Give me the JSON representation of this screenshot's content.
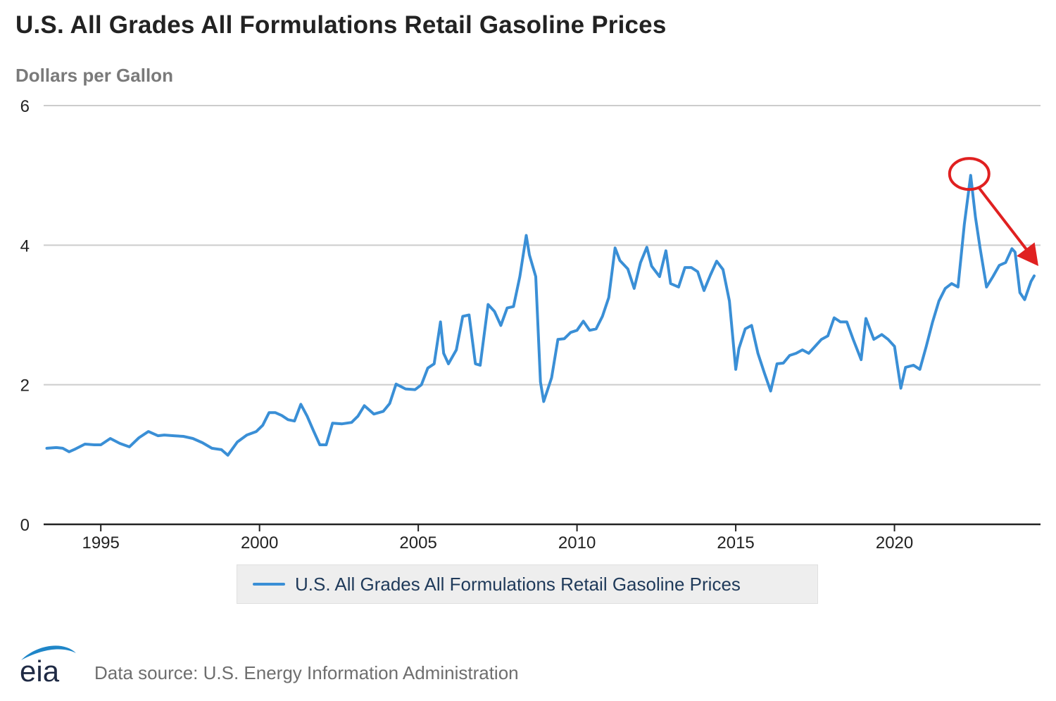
{
  "header": {
    "title": "U.S. All Grades All Formulations Retail Gasoline Prices",
    "units": "Dollars per Gallon"
  },
  "footer": {
    "logo_text": "eia",
    "source": "Data source: U.S. Energy Information Administration"
  },
  "colors": {
    "series": "#3a8fd6",
    "annotation": "#e02020",
    "grid": "#cccccc",
    "axis": "#222222"
  },
  "chart_data": {
    "type": "line",
    "title": "U.S. All Grades All Formulations Retail Gasoline Prices",
    "ylabel": "Dollars per Gallon",
    "xlabel": "",
    "xlim": [
      1993.2,
      2024.6
    ],
    "ylim": [
      0,
      6
    ],
    "x_ticks": [
      1995,
      2000,
      2005,
      2010,
      2015,
      2020
    ],
    "y_ticks": [
      0,
      2,
      4,
      6
    ],
    "grid": true,
    "legend": "bottom-center",
    "series": [
      {
        "name": "U.S. All Grades All Formulations Retail Gasoline Prices",
        "x": [
          1993.3,
          1993.6,
          1993.8,
          1994.0,
          1994.2,
          1994.5,
          1994.8,
          1995.0,
          1995.3,
          1995.6,
          1995.9,
          1996.2,
          1996.5,
          1996.8,
          1997.0,
          1997.3,
          1997.6,
          1997.9,
          1998.2,
          1998.5,
          1998.8,
          1999.0,
          1999.3,
          1999.6,
          1999.9,
          2000.1,
          2000.3,
          2000.5,
          2000.7,
          2000.9,
          2001.1,
          2001.3,
          2001.5,
          2001.7,
          2001.9,
          2002.1,
          2002.3,
          2002.6,
          2002.9,
          2003.1,
          2003.3,
          2003.6,
          2003.9,
          2004.1,
          2004.3,
          2004.6,
          2004.9,
          2005.1,
          2005.3,
          2005.5,
          2005.7,
          2005.8,
          2005.95,
          2006.2,
          2006.4,
          2006.6,
          2006.8,
          2006.95,
          2007.2,
          2007.4,
          2007.6,
          2007.8,
          2008.0,
          2008.2,
          2008.4,
          2008.5,
          2008.7,
          2008.85,
          2008.95,
          2009.2,
          2009.4,
          2009.6,
          2009.8,
          2010.0,
          2010.2,
          2010.4,
          2010.6,
          2010.8,
          2011.0,
          2011.2,
          2011.35,
          2011.6,
          2011.8,
          2012.0,
          2012.2,
          2012.35,
          2012.6,
          2012.8,
          2012.95,
          2013.2,
          2013.4,
          2013.6,
          2013.8,
          2014.0,
          2014.2,
          2014.4,
          2014.6,
          2014.8,
          2015.0,
          2015.1,
          2015.3,
          2015.5,
          2015.7,
          2015.9,
          2016.1,
          2016.3,
          2016.5,
          2016.7,
          2016.9,
          2017.1,
          2017.3,
          2017.5,
          2017.7,
          2017.9,
          2018.1,
          2018.3,
          2018.5,
          2018.7,
          2018.95,
          2019.1,
          2019.35,
          2019.6,
          2019.8,
          2020.0,
          2020.2,
          2020.35,
          2020.6,
          2020.8,
          2021.0,
          2021.2,
          2021.4,
          2021.6,
          2021.8,
          2022.0,
          2022.2,
          2022.4,
          2022.55,
          2022.7,
          2022.9,
          2023.1,
          2023.3,
          2023.5,
          2023.7,
          2023.8,
          2023.95,
          2024.1,
          2024.3,
          2024.4
        ],
        "values": [
          1.09,
          1.1,
          1.09,
          1.04,
          1.08,
          1.15,
          1.14,
          1.14,
          1.23,
          1.16,
          1.11,
          1.24,
          1.33,
          1.27,
          1.28,
          1.27,
          1.26,
          1.23,
          1.17,
          1.09,
          1.07,
          0.99,
          1.18,
          1.28,
          1.33,
          1.42,
          1.6,
          1.6,
          1.56,
          1.5,
          1.48,
          1.72,
          1.55,
          1.34,
          1.14,
          1.14,
          1.45,
          1.44,
          1.46,
          1.55,
          1.7,
          1.58,
          1.62,
          1.73,
          2.01,
          1.94,
          1.93,
          2.0,
          2.24,
          2.3,
          2.9,
          2.45,
          2.3,
          2.5,
          2.98,
          3.0,
          2.3,
          2.28,
          3.15,
          3.05,
          2.85,
          3.1,
          3.12,
          3.55,
          4.14,
          3.86,
          3.55,
          2.04,
          1.76,
          2.1,
          2.65,
          2.66,
          2.75,
          2.78,
          2.91,
          2.78,
          2.8,
          2.98,
          3.25,
          3.96,
          3.78,
          3.66,
          3.38,
          3.75,
          3.97,
          3.7,
          3.55,
          3.92,
          3.45,
          3.4,
          3.68,
          3.68,
          3.62,
          3.35,
          3.57,
          3.77,
          3.65,
          3.2,
          2.22,
          2.52,
          2.8,
          2.85,
          2.45,
          2.17,
          1.91,
          2.3,
          2.31,
          2.42,
          2.45,
          2.5,
          2.45,
          2.55,
          2.65,
          2.7,
          2.96,
          2.9,
          2.9,
          2.65,
          2.36,
          2.95,
          2.65,
          2.72,
          2.65,
          2.55,
          1.95,
          2.25,
          2.28,
          2.22,
          2.55,
          2.9,
          3.2,
          3.38,
          3.45,
          3.4,
          4.3,
          5.0,
          4.4,
          3.95,
          3.4,
          3.55,
          3.71,
          3.75,
          3.95,
          3.9,
          3.32,
          3.22,
          3.48,
          3.56
        ]
      }
    ],
    "annotations": [
      "circle-on-2022-peak",
      "arrow-from-peak-down"
    ]
  }
}
